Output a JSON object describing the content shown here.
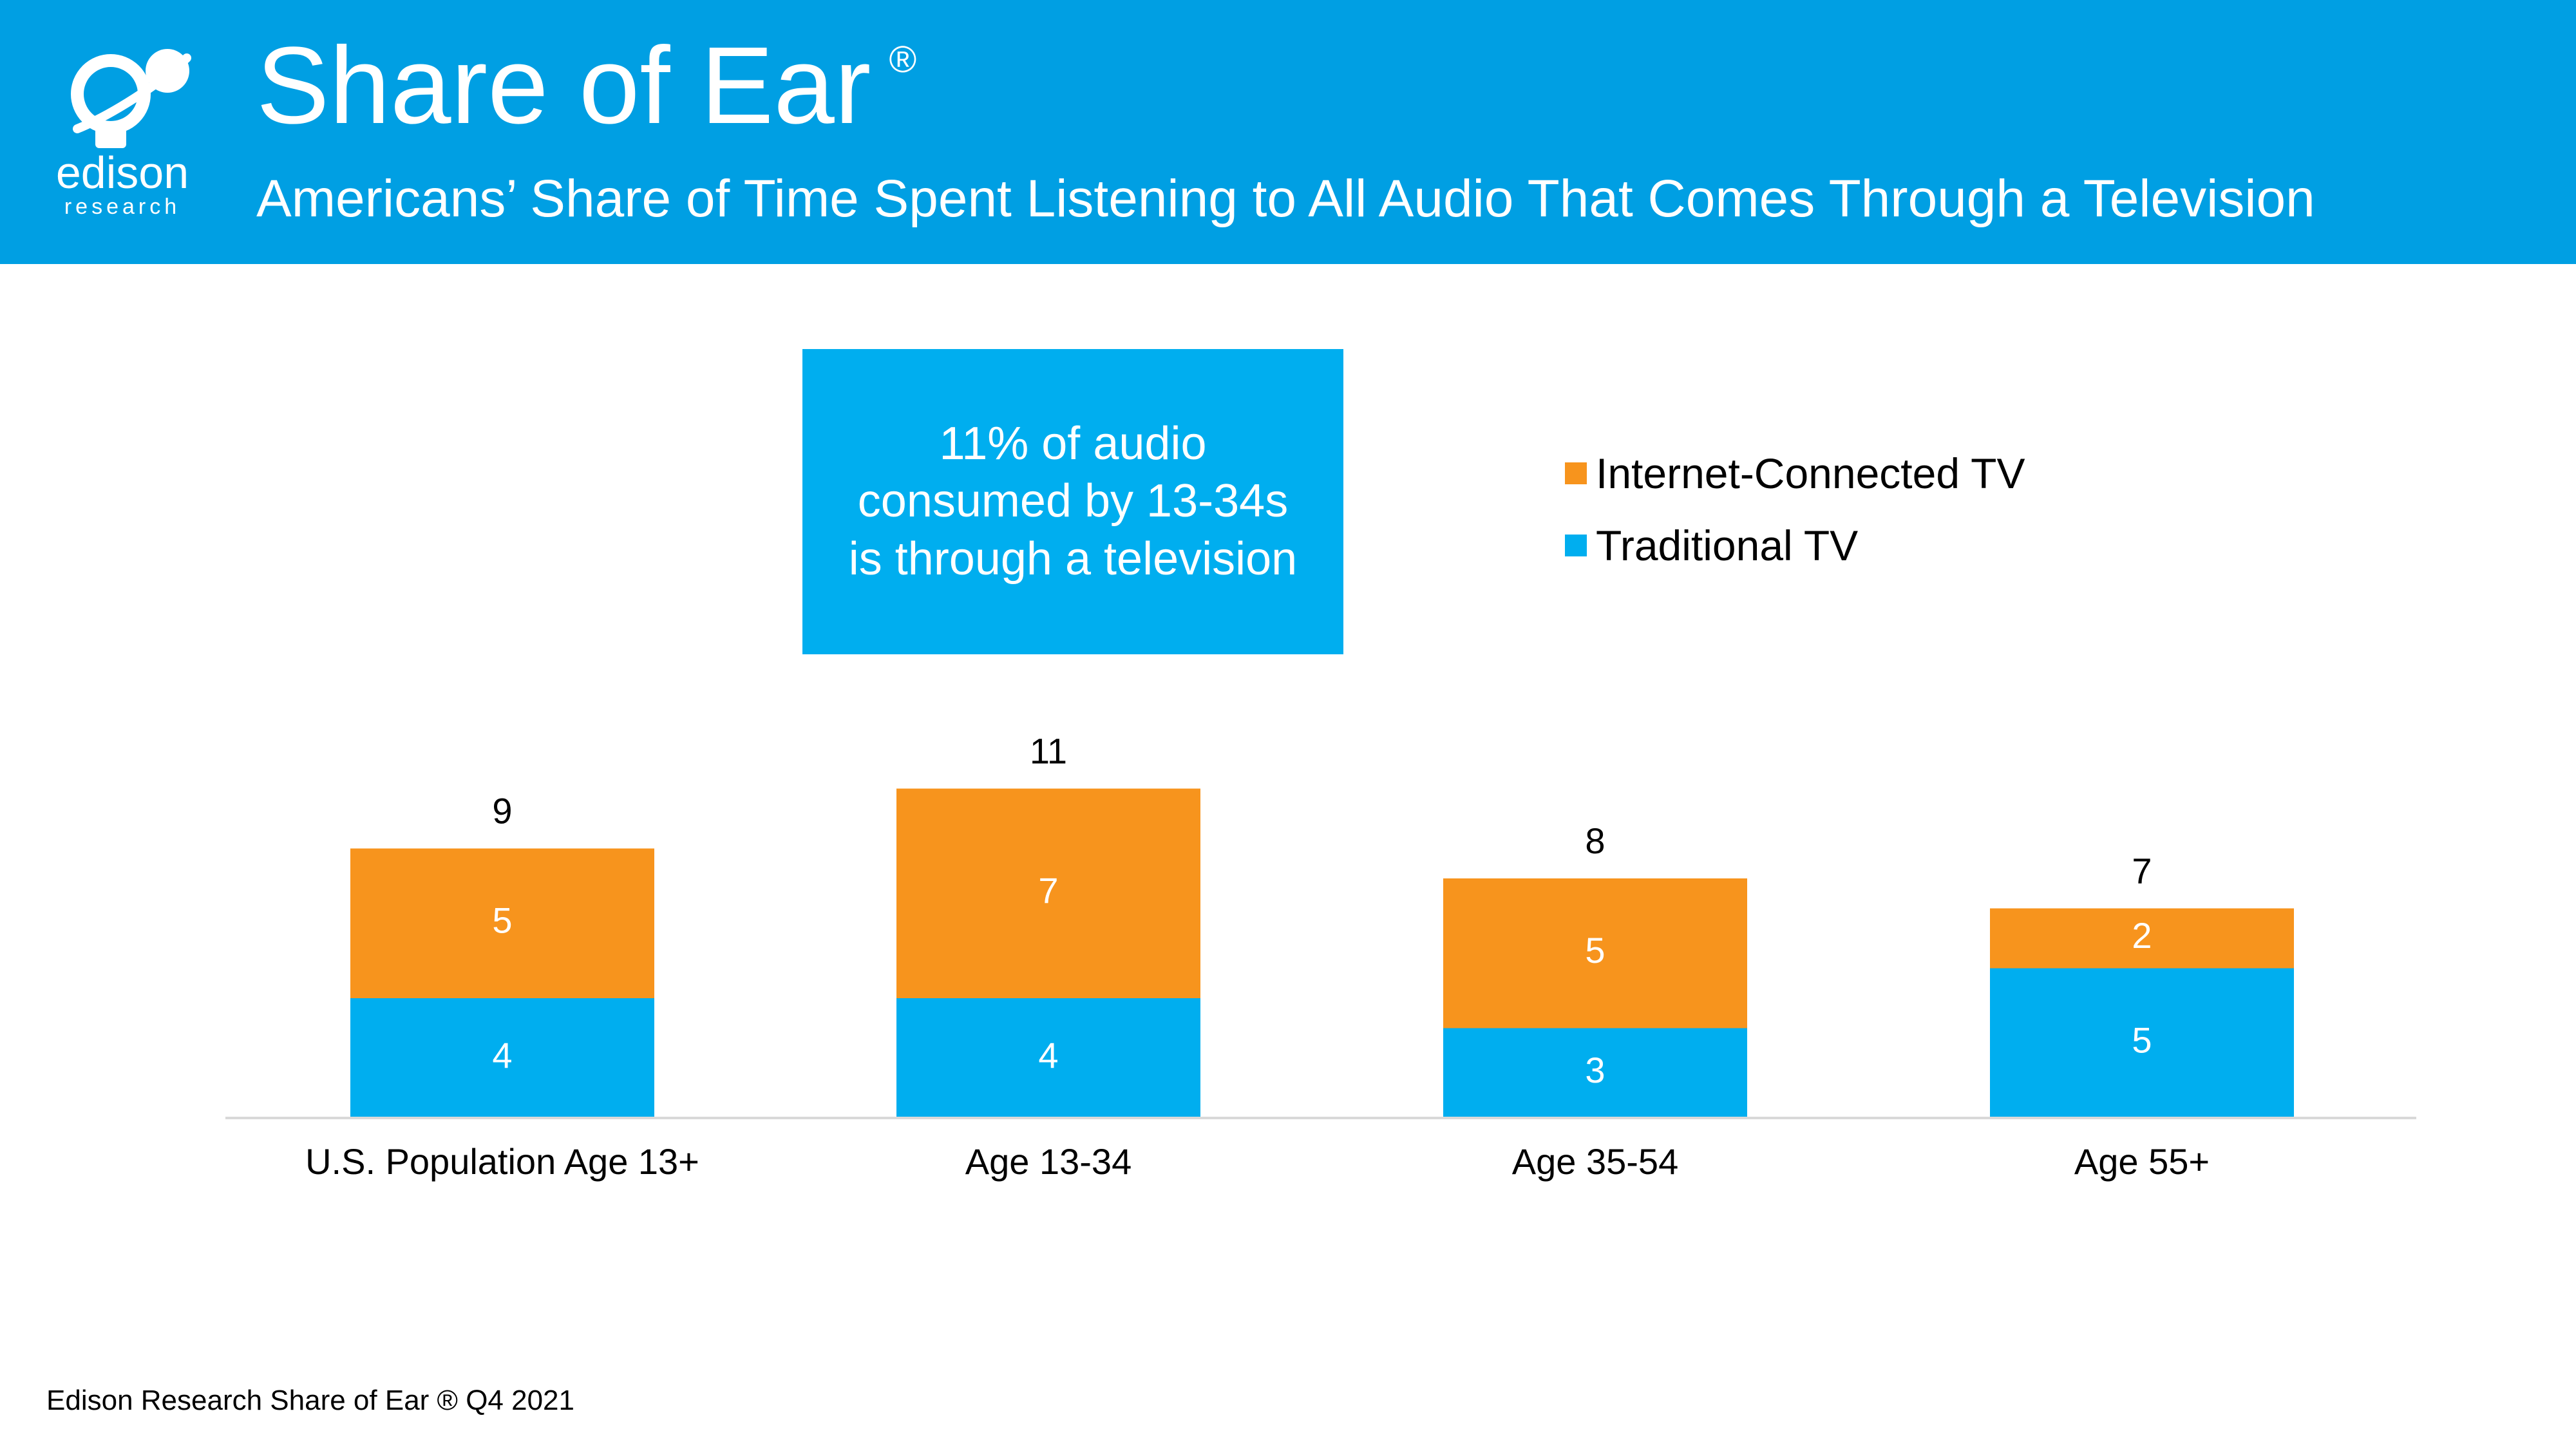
{
  "header": {
    "title": "Share of Ear",
    "registered_mark": "®",
    "subtitle": "Americans’ Share of Time Spent Listening to All Audio That Comes Through a Television",
    "logo": {
      "wordmark": "edison",
      "tagline": "research"
    },
    "background_color": "#009fe3"
  },
  "callout": {
    "lines": [
      "11% of audio",
      "consumed by 13-34s",
      "is through a television"
    ],
    "background_color": "#00aeef"
  },
  "footer": {
    "source": "Edison Research Share of Ear ® Q4 2021"
  },
  "chart_data": {
    "type": "bar",
    "stacked": true,
    "categories": [
      "U.S. Population Age 13+",
      "Age 13-34",
      "Age 35-54",
      "Age 55+"
    ],
    "series": [
      {
        "name": "Traditional TV",
        "values": [
          4,
          4,
          3,
          5
        ],
        "color": "#00aeef"
      },
      {
        "name": "Internet-Connected TV",
        "values": [
          5,
          7,
          5,
          2
        ],
        "color": "#f7941d"
      }
    ],
    "totals": [
      9,
      11,
      8,
      7
    ],
    "ylim": [
      0,
      11
    ],
    "legend_position": "top-right",
    "legend_order": [
      "Internet-Connected TV",
      "Traditional TV"
    ],
    "grid": false
  }
}
